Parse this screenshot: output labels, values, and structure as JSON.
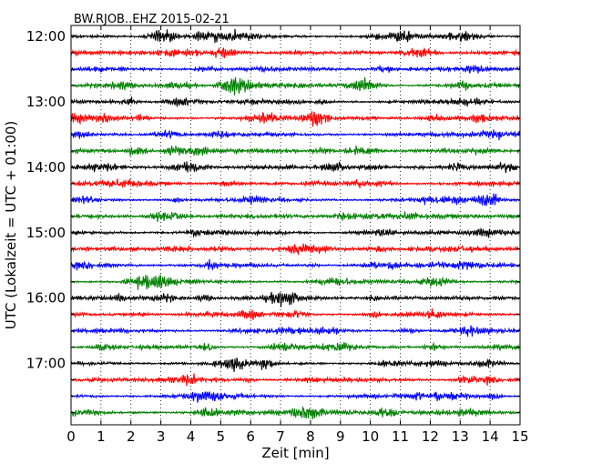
{
  "chart_data": {
    "type": "line",
    "title": "BW.RJOB..EHZ 2015-02-21",
    "xlabel": "Zeit  [min]",
    "ylabel": "UTC (Lokalzeit = UTC + 01:00)",
    "xlim": [
      0,
      15
    ],
    "x_ticks": [
      "0",
      "1",
      "2",
      "3",
      "4",
      "5",
      "6",
      "7",
      "8",
      "9",
      "10",
      "11",
      "12",
      "13",
      "14",
      "15"
    ],
    "y_tick_labels": [
      "12:00",
      "13:00",
      "14:00",
      "15:00",
      "16:00",
      "17:00"
    ],
    "grid": "vertical dotted lines at each minute",
    "trace_colors": [
      "#000000",
      "#ff0000",
      "#0000ff",
      "#008000"
    ],
    "trace_start_times": [
      "12:00",
      "12:15",
      "12:30",
      "12:45",
      "13:00",
      "13:15",
      "13:30",
      "13:45",
      "14:00",
      "14:15",
      "14:30",
      "14:45",
      "15:00",
      "15:15",
      "15:30",
      "15:45",
      "16:00",
      "16:15",
      "16:30",
      "16:45",
      "17:00",
      "17:15",
      "17:30",
      "17:45"
    ],
    "minutes_per_trace": 15
  }
}
